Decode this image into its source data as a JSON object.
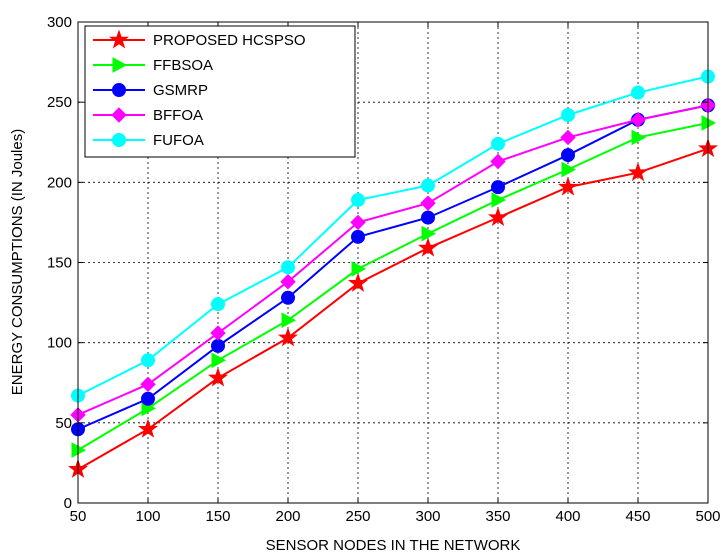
{
  "chart_data": {
    "type": "line",
    "title": "",
    "xlabel": "SENSOR NODES IN THE NETWORK",
    "ylabel": "ENERGY CONSUMPTIONS (IN Joules)",
    "x": [
      50,
      100,
      150,
      200,
      250,
      300,
      350,
      400,
      450,
      500
    ],
    "xlim": [
      50,
      500
    ],
    "ylim": [
      0,
      300
    ],
    "xticks": [
      "50",
      "100",
      "150",
      "200",
      "250",
      "300",
      "350",
      "400",
      "450",
      "500"
    ],
    "yticks": [
      "0",
      "50",
      "100",
      "150",
      "200",
      "250",
      "300"
    ],
    "grid": true,
    "legend_position": "top-left",
    "series": [
      {
        "name": "PROPOSED HCSPSO",
        "color": "#ff0000",
        "marker": "star",
        "values": [
          21,
          46,
          78,
          103,
          137,
          159,
          178,
          197,
          206,
          221
        ]
      },
      {
        "name": "FFBSOA",
        "color": "#00ff00",
        "marker": "triangle-right",
        "values": [
          33,
          59,
          89,
          114,
          146,
          168,
          189,
          208,
          228,
          237
        ]
      },
      {
        "name": "GSMRP",
        "color": "#0000ff",
        "marker": "circle",
        "values": [
          46,
          65,
          98,
          128,
          166,
          178,
          197,
          217,
          239,
          248
        ]
      },
      {
        "name": "BFFOA",
        "color": "#ff00ff",
        "marker": "diamond",
        "values": [
          55,
          74,
          106,
          138,
          175,
          187,
          213,
          228,
          239,
          248
        ]
      },
      {
        "name": "FUFOA",
        "color": "#00ffff",
        "marker": "circle",
        "values": [
          67,
          89,
          124,
          147,
          189,
          198,
          224,
          242,
          256,
          266
        ]
      }
    ]
  }
}
